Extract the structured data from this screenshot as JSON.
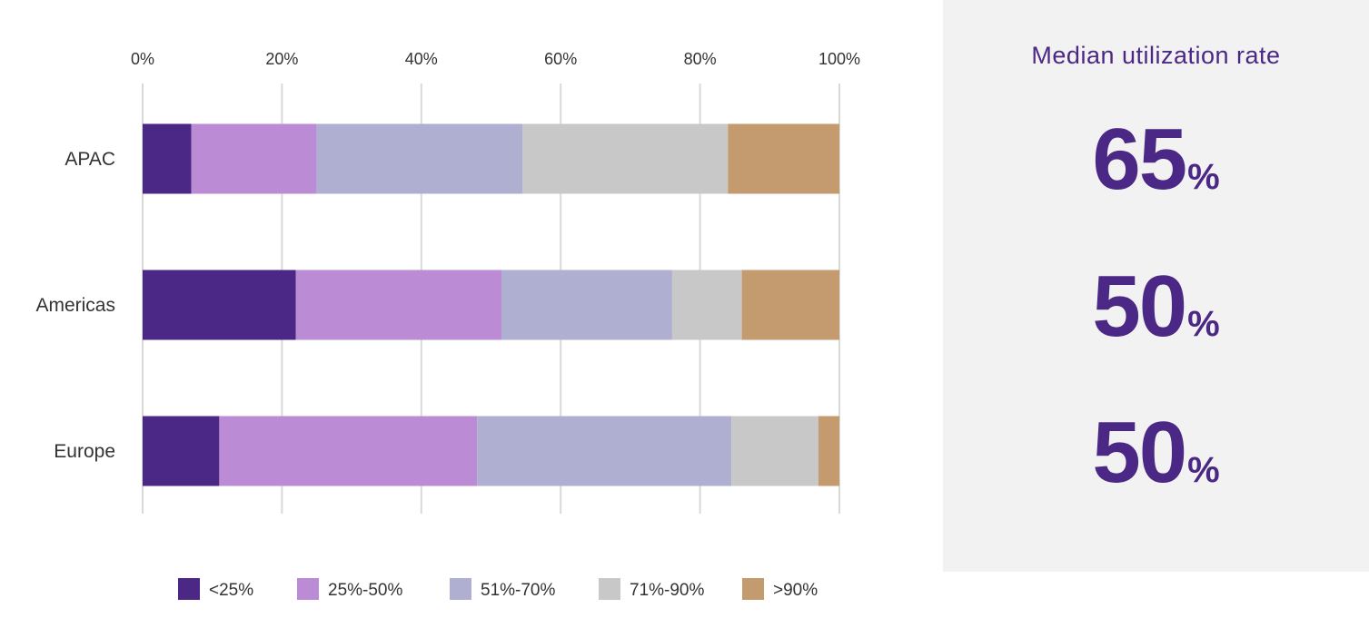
{
  "chart_data": {
    "type": "bar",
    "orientation": "horizontal",
    "stacked": true,
    "categories": [
      "APAC",
      "Americas",
      "Europe"
    ],
    "x_ticks": [
      "0%",
      "20%",
      "40%",
      "60%",
      "80%",
      "100%"
    ],
    "xlim": [
      0,
      100
    ],
    "grid": true,
    "legend_position": "bottom",
    "series": [
      {
        "name": "<25%",
        "color": "#4b2885",
        "values": [
          7,
          22,
          11
        ]
      },
      {
        "name": "25%-50%",
        "color": "#bb8bd6",
        "values": [
          18,
          29.5,
          37
        ]
      },
      {
        "name": "51%-70%",
        "color": "#afafd1",
        "values": [
          29.5,
          24.5,
          36.5
        ]
      },
      {
        "name": "71%-90%",
        "color": "#c8c8c8",
        "values": [
          29.5,
          10,
          12.5
        ]
      },
      {
        "name": ">90%",
        "color": "#c49a6f",
        "values": [
          16,
          14,
          3
        ]
      }
    ]
  },
  "side_panel": {
    "title": "Median utilization rate",
    "medians": [
      {
        "value": "65",
        "unit": "%"
      },
      {
        "value": "50",
        "unit": "%"
      },
      {
        "value": "50",
        "unit": "%"
      }
    ]
  }
}
